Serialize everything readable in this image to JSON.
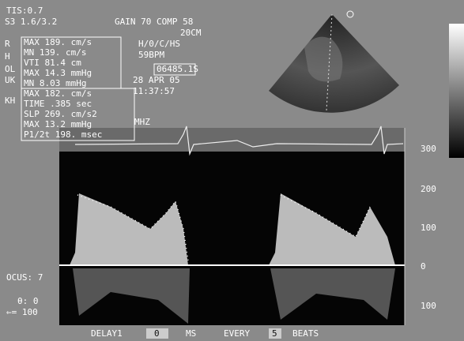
{
  "header": {
    "tis": "TIS:0.7",
    "probe": "S3 1.6/3.2",
    "gain": "GAIN 70 COMP 58",
    "depth": "20CM",
    "mode": "H/0/C/HS",
    "heart_rate": "59BPM",
    "clip": "06485.1S",
    "date": "28 APR 05",
    "time": "11:37:57",
    "frequency": "MHZ"
  },
  "left_labels": [
    "R",
    "H",
    "OL",
    "UK",
    "KH"
  ],
  "measurements_1": [
    "MAX 189. cm/s",
    "MN 139. cm/s",
    "VTI 81.4 cm",
    "MAX 14.3 mmHg",
    "MN 8.03 mmHg"
  ],
  "measurements_2": [
    "MAX 182. cm/s",
    "TIME .385 sec",
    "SLP 269. cm/s2",
    "MAX 13.2 mmHg",
    "P1/2t 198. msec"
  ],
  "scale": [
    "300",
    "200",
    "100",
    "0",
    "100"
  ],
  "bottom_left": [
    "OCUS: 7",
    "θ: 0",
    "⇐= 100"
  ],
  "footer": [
    "DELAY1",
    "0",
    "MS",
    "EVERY",
    "5",
    "BEATS"
  ]
}
